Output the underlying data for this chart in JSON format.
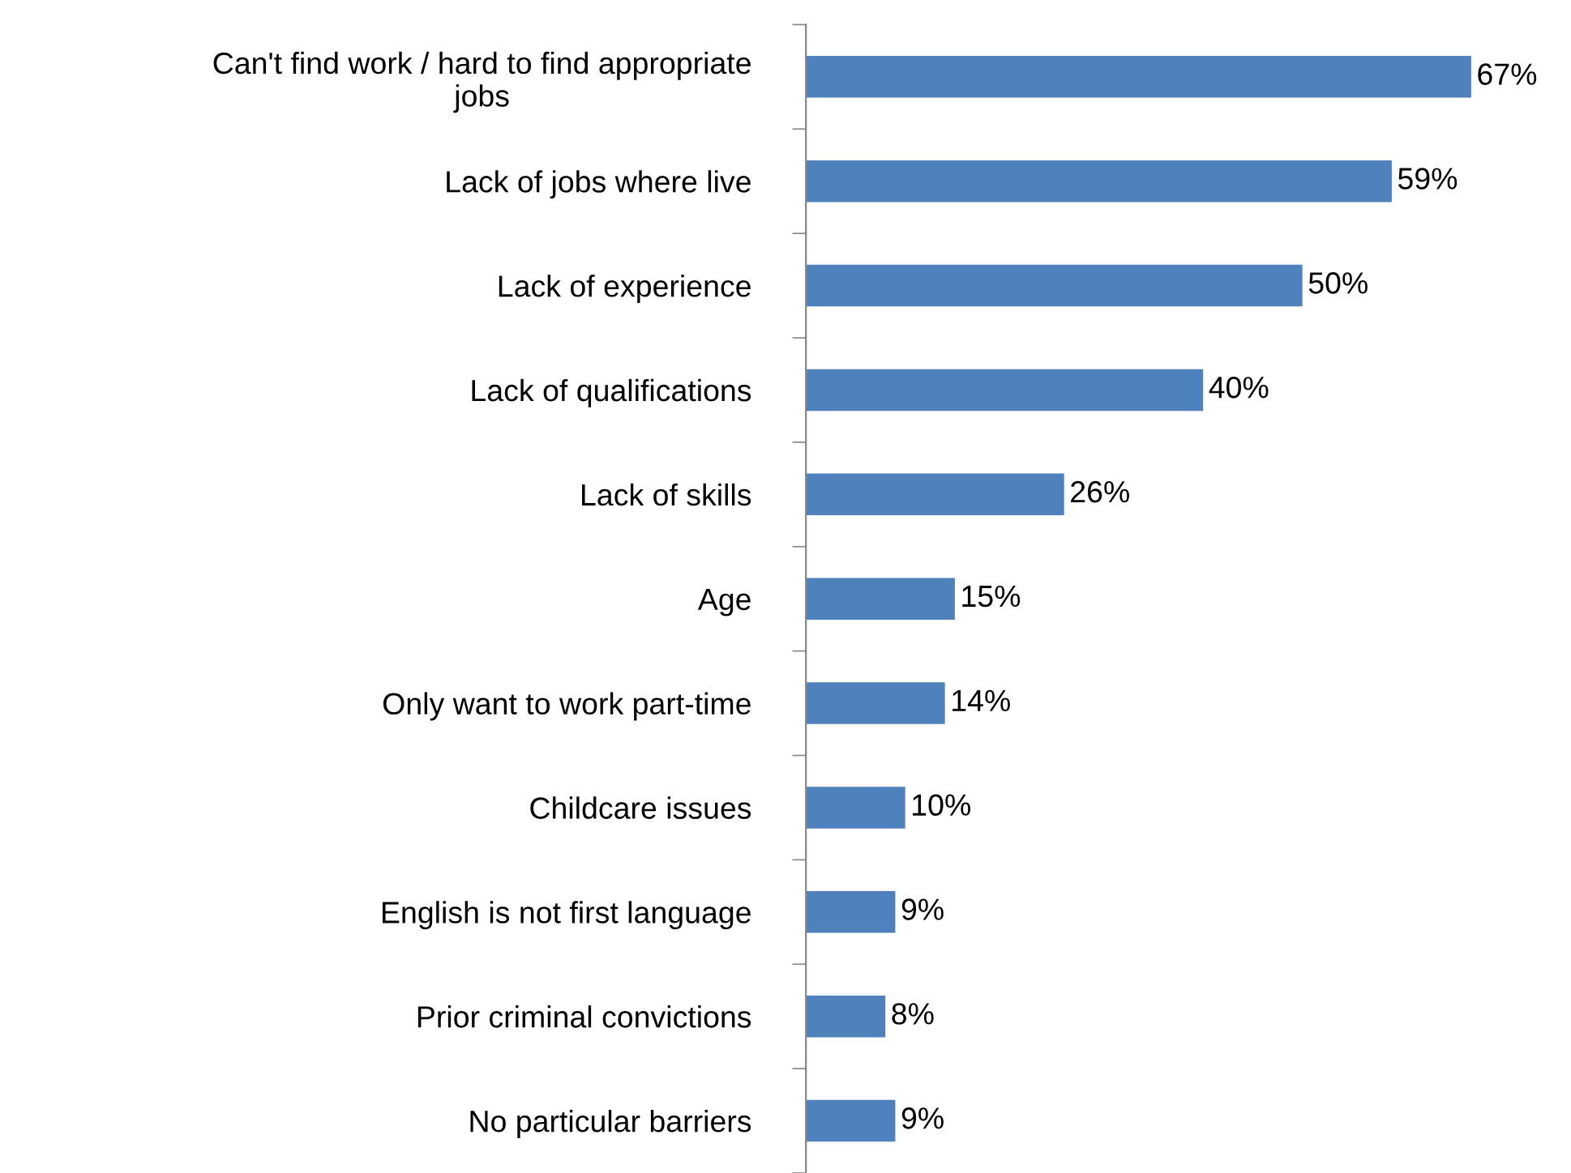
{
  "chart_data": {
    "type": "bar",
    "orientation": "horizontal",
    "color": "#4f81bd",
    "categories": [
      "Can't find work / hard to find appropriate\njobs",
      "Lack of jobs where live",
      "Lack of experience",
      "Lack of qualifications",
      "Lack of skills",
      "Age",
      "Only want to work part-time",
      "Childcare issues",
      "English is not first language",
      "Prior criminal convictions",
      "No particular barriers"
    ],
    "values": [
      67,
      59,
      50,
      40,
      26,
      15,
      14,
      10,
      9,
      8,
      9
    ],
    "value_labels": [
      "67%",
      "59%",
      "50%",
      "40%",
      "26%",
      "15%",
      "14%",
      "10%",
      "9%",
      "8%",
      "9%"
    ],
    "grid": false,
    "legend": false
  }
}
